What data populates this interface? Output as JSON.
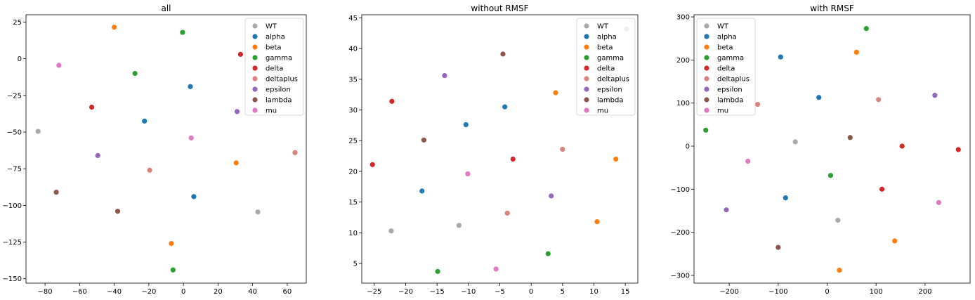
{
  "colors": {
    "WT": "#a9a9a9",
    "alpha": "#1f77b4",
    "beta": "#ff7f0e",
    "gamma": "#2ca02c",
    "delta": "#d62728",
    "deltaplus": "#d9837d",
    "epsilon": "#9467bd",
    "lambda": "#8c564b",
    "mu": "#e377c2"
  },
  "chart_data": [
    {
      "type": "scatter",
      "title": "all",
      "xlim": [
        -91,
        71
      ],
      "ylim": [
        -153,
        30
      ],
      "xticks": [
        -80,
        -60,
        -40,
        -20,
        0,
        20,
        40,
        60
      ],
      "yticks": [
        25,
        0,
        -25,
        -50,
        -75,
        -100,
        -125,
        -150
      ],
      "legend_position": "top-right",
      "series": [
        {
          "name": "WT",
          "points": [
            [
              -84,
              -49.5
            ],
            [
              43,
              -104.5
            ]
          ]
        },
        {
          "name": "alpha",
          "points": [
            [
              4,
              -19
            ],
            [
              -22.5,
              -42.5
            ],
            [
              6,
              -94
            ]
          ]
        },
        {
          "name": "beta",
          "points": [
            [
              -40,
              21.5
            ],
            [
              30.5,
              -71
            ],
            [
              -7,
              -126
            ]
          ]
        },
        {
          "name": "gamma",
          "points": [
            [
              -0.5,
              18
            ],
            [
              -28,
              -10
            ],
            [
              -6,
              -144
            ]
          ]
        },
        {
          "name": "delta",
          "points": [
            [
              33,
              3
            ],
            [
              -53,
              -33
            ]
          ]
        },
        {
          "name": "deltaplus",
          "points": [
            [
              -19.5,
              -76
            ],
            [
              64.5,
              -64
            ]
          ]
        },
        {
          "name": "epsilon",
          "points": [
            [
              31,
              -36
            ],
            [
              -49.5,
              -66
            ]
          ]
        },
        {
          "name": "lambda",
          "points": [
            [
              -73.5,
              -91
            ],
            [
              -38,
              -104
            ]
          ]
        },
        {
          "name": "mu",
          "points": [
            [
              -72,
              -4.5
            ],
            [
              4.5,
              -54
            ]
          ]
        }
      ]
    },
    {
      "type": "scatter",
      "title": "without RMSF",
      "xlim": [
        -27,
        17
      ],
      "ylim": [
        1.8,
        45.5
      ],
      "xticks": [
        -25,
        -20,
        -15,
        -10,
        -5,
        0,
        5,
        10,
        15
      ],
      "yticks": [
        45,
        40,
        35,
        30,
        25,
        20,
        15,
        10,
        5
      ],
      "legend_position": "top-right",
      "series": [
        {
          "name": "WT",
          "points": [
            [
              -22.3,
              10.3
            ],
            [
              -11.5,
              11.2
            ],
            [
              15.2,
              43.2
            ]
          ]
        },
        {
          "name": "alpha",
          "points": [
            [
              -4.2,
              30.5
            ],
            [
              -10.4,
              27.6
            ],
            [
              -17.4,
              16.8
            ]
          ]
        },
        {
          "name": "beta",
          "points": [
            [
              3.9,
              32.8
            ],
            [
              13.5,
              22
            ],
            [
              10.5,
              11.8
            ]
          ]
        },
        {
          "name": "gamma",
          "points": [
            [
              2.7,
              6.6
            ],
            [
              -14.9,
              3.7
            ]
          ]
        },
        {
          "name": "delta",
          "points": [
            [
              -22.2,
              31.4
            ],
            [
              -25.3,
              21.1
            ],
            [
              -2.9,
              22
            ]
          ]
        },
        {
          "name": "deltaplus",
          "points": [
            [
              5,
              23.6
            ],
            [
              -3.8,
              13.2
            ]
          ]
        },
        {
          "name": "epsilon",
          "points": [
            [
              -13.8,
              35.6
            ],
            [
              3.2,
              16
            ]
          ]
        },
        {
          "name": "lambda",
          "points": [
            [
              -4.5,
              39.1
            ],
            [
              -17.1,
              25.1
            ]
          ]
        },
        {
          "name": "mu",
          "points": [
            [
              -10.1,
              19.6
            ],
            [
              -5.6,
              4.1
            ]
          ]
        }
      ]
    },
    {
      "type": "scatter",
      "title": "with RMSF",
      "xlim": [
        -272,
        292
      ],
      "ylim": [
        -318,
        305
      ],
      "xticks": [
        -200,
        -100,
        0,
        100,
        200
      ],
      "yticks": [
        300,
        200,
        100,
        0,
        -100,
        -200,
        -300
      ],
      "legend_position": "top-left",
      "series": [
        {
          "name": "WT",
          "points": [
            [
              -65,
              10
            ],
            [
              22,
              -172
            ]
          ]
        },
        {
          "name": "alpha",
          "points": [
            [
              -95,
              207
            ],
            [
              -17,
              113
            ],
            [
              -85,
              -120
            ]
          ]
        },
        {
          "name": "beta",
          "points": [
            [
              60,
              218
            ],
            [
              138,
              -220
            ],
            [
              25,
              -288
            ]
          ]
        },
        {
          "name": "gamma",
          "points": [
            [
              80,
              273
            ],
            [
              -248,
              37
            ],
            [
              7,
              -68
            ]
          ]
        },
        {
          "name": "delta",
          "points": [
            [
              153,
              0
            ],
            [
              268,
              -8
            ],
            [
              112,
              -100
            ]
          ]
        },
        {
          "name": "deltaplus",
          "points": [
            [
              -142,
              97
            ],
            [
              105,
              108
            ]
          ]
        },
        {
          "name": "epsilon",
          "points": [
            [
              220,
              118
            ],
            [
              -206,
              -148
            ]
          ]
        },
        {
          "name": "lambda",
          "points": [
            [
              47,
              20
            ],
            [
              -100,
              -235
            ]
          ]
        },
        {
          "name": "mu",
          "points": [
            [
              -162,
              -35
            ],
            [
              228,
              -131
            ]
          ]
        }
      ]
    }
  ]
}
